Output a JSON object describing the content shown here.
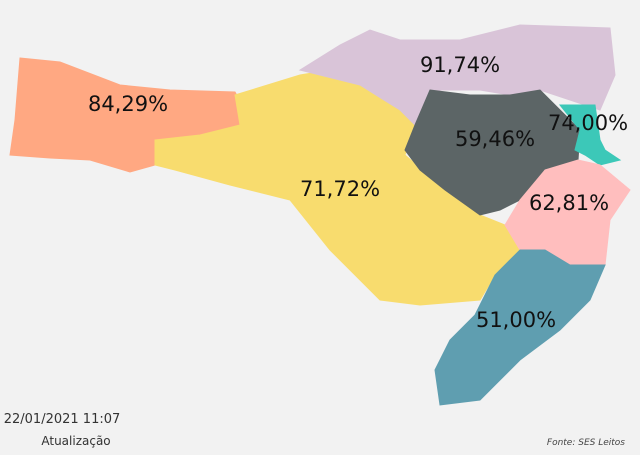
{
  "regions": [
    {
      "label": "84,29%",
      "color": "#FFA882"
    },
    {
      "label": "71,72%",
      "color": "#F8DC6E"
    },
    {
      "label": "91,74%",
      "color": "#D9C4D8"
    },
    {
      "label": "59,46%",
      "color": "#5C6566"
    },
    {
      "label": "74,00%",
      "color": "#3CC8B8"
    },
    {
      "label": "62,81%",
      "color": "#FFBEBE"
    },
    {
      "label": "51,00%",
      "color": "#5F9EB0"
    }
  ],
  "footer": {
    "timestamp": "22/01/2021 11:07",
    "caption": "Atualização",
    "source": "Fonte: SES Leitos"
  }
}
